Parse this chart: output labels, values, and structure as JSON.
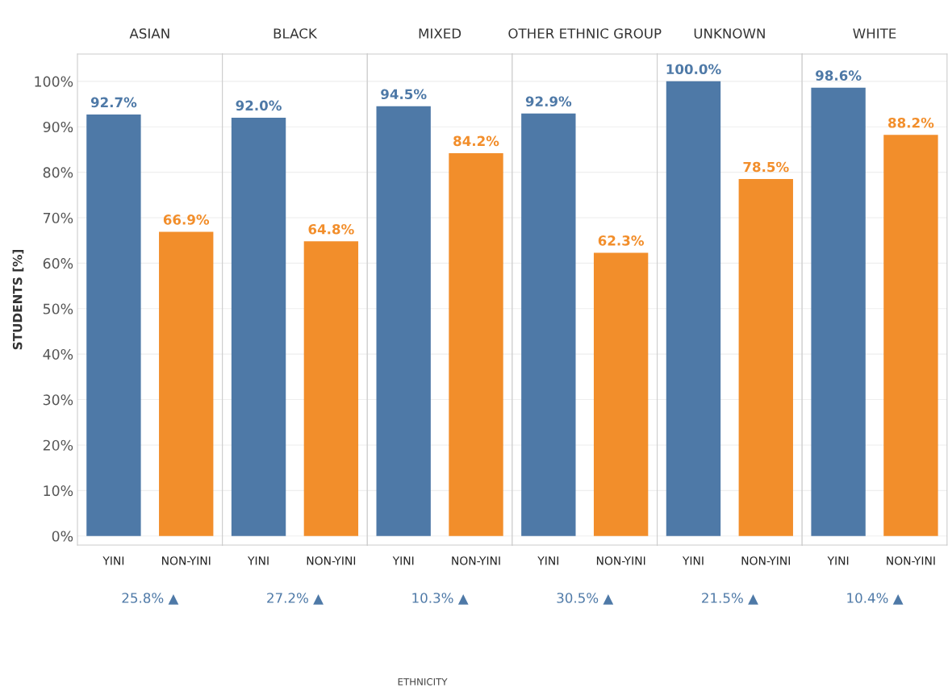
{
  "chart_data": [
    {
      "type": "bar",
      "title": "ASIAN",
      "ylabel": "STUDENTS [%]",
      "categories": [
        "YINI",
        "NON-YINI"
      ],
      "values": [
        92.7,
        66.9
      ],
      "colors": [
        "#4e79a7",
        "#f28e2b"
      ],
      "value_labels": [
        "92.7%",
        "66.9%"
      ],
      "annotations": [
        "25.8% ▲"
      ],
      "ylim": [
        -2,
        106
      ],
      "yticks": [
        {
          "value": 0,
          "label": "0%"
        },
        {
          "value": 10,
          "label": "10%"
        },
        {
          "value": 20,
          "label": "20%"
        },
        {
          "value": 30,
          "label": "30%"
        },
        {
          "value": 40,
          "label": "40%"
        },
        {
          "value": 50,
          "label": "50%"
        },
        {
          "value": 60,
          "label": "60%"
        },
        {
          "value": 70,
          "label": "70%"
        },
        {
          "value": 80,
          "label": "80%"
        },
        {
          "value": 90,
          "label": "90%"
        },
        {
          "value": 100,
          "label": "100%"
        }
      ],
      "grid": "y"
    },
    {
      "type": "bar",
      "title": "BLACK",
      "categories": [
        "YINI",
        "NON-YINI"
      ],
      "values": [
        92.0,
        64.8
      ],
      "colors": [
        "#4e79a7",
        "#f28e2b"
      ],
      "value_labels": [
        "92.0%",
        "64.8%"
      ],
      "annotations": [
        "27.2% ▲"
      ],
      "ylim": [
        -2,
        106
      ],
      "yticks": [
        0,
        10,
        20,
        30,
        40,
        50,
        60,
        70,
        80,
        90,
        100
      ],
      "grid": "y",
      "tick_labels": "x"
    },
    {
      "type": "bar",
      "title": "MIXED",
      "xlabel": "ETHNICITY",
      "categories": [
        "YINI",
        "NON-YINI"
      ],
      "values": [
        94.5,
        84.2
      ],
      "colors": [
        "#4e79a7",
        "#f28e2b"
      ],
      "value_labels": [
        "94.5%",
        "84.2%"
      ],
      "annotations": [
        "10.3% ▲"
      ],
      "ylim": [
        -2,
        106
      ],
      "yticks": [
        0,
        10,
        20,
        30,
        40,
        50,
        60,
        70,
        80,
        90,
        100
      ],
      "grid": "y",
      "tick_labels": "x"
    },
    {
      "type": "bar",
      "title": "OTHER ETHNIC GROUP",
      "categories": [
        "YINI",
        "NON-YINI"
      ],
      "values": [
        92.9,
        62.3
      ],
      "colors": [
        "#4e79a7",
        "#f28e2b"
      ],
      "value_labels": [
        "92.9%",
        "62.3%"
      ],
      "annotations": [
        "30.5% ▲"
      ],
      "ylim": [
        -2,
        106
      ],
      "yticks": [
        0,
        10,
        20,
        30,
        40,
        50,
        60,
        70,
        80,
        90,
        100
      ],
      "grid": "y",
      "tick_labels": "x"
    },
    {
      "type": "bar",
      "title": "UNKNOWN",
      "categories": [
        "YINI",
        "NON-YINI"
      ],
      "values": [
        100.0,
        78.5
      ],
      "colors": [
        "#4e79a7",
        "#f28e2b"
      ],
      "value_labels": [
        "100.0%",
        "78.5%"
      ],
      "annotations": [
        "21.5% ▲"
      ],
      "ylim": [
        -2,
        106
      ],
      "yticks": [
        0,
        10,
        20,
        30,
        40,
        50,
        60,
        70,
        80,
        90,
        100
      ],
      "grid": "y",
      "tick_labels": "x"
    },
    {
      "type": "bar",
      "title": "WHITE",
      "categories": [
        "YINI",
        "NON-YINI"
      ],
      "values": [
        98.6,
        88.2
      ],
      "colors": [
        "#4e79a7",
        "#f28e2b"
      ],
      "value_labels": [
        "98.6%",
        "88.2%"
      ],
      "annotations": [
        "10.4% ▲"
      ],
      "ylim": [
        -2,
        106
      ],
      "yticks": [
        0,
        10,
        20,
        30,
        40,
        50,
        60,
        70,
        80,
        90,
        100
      ],
      "grid": "y",
      "tick_labels": "x"
    }
  ]
}
